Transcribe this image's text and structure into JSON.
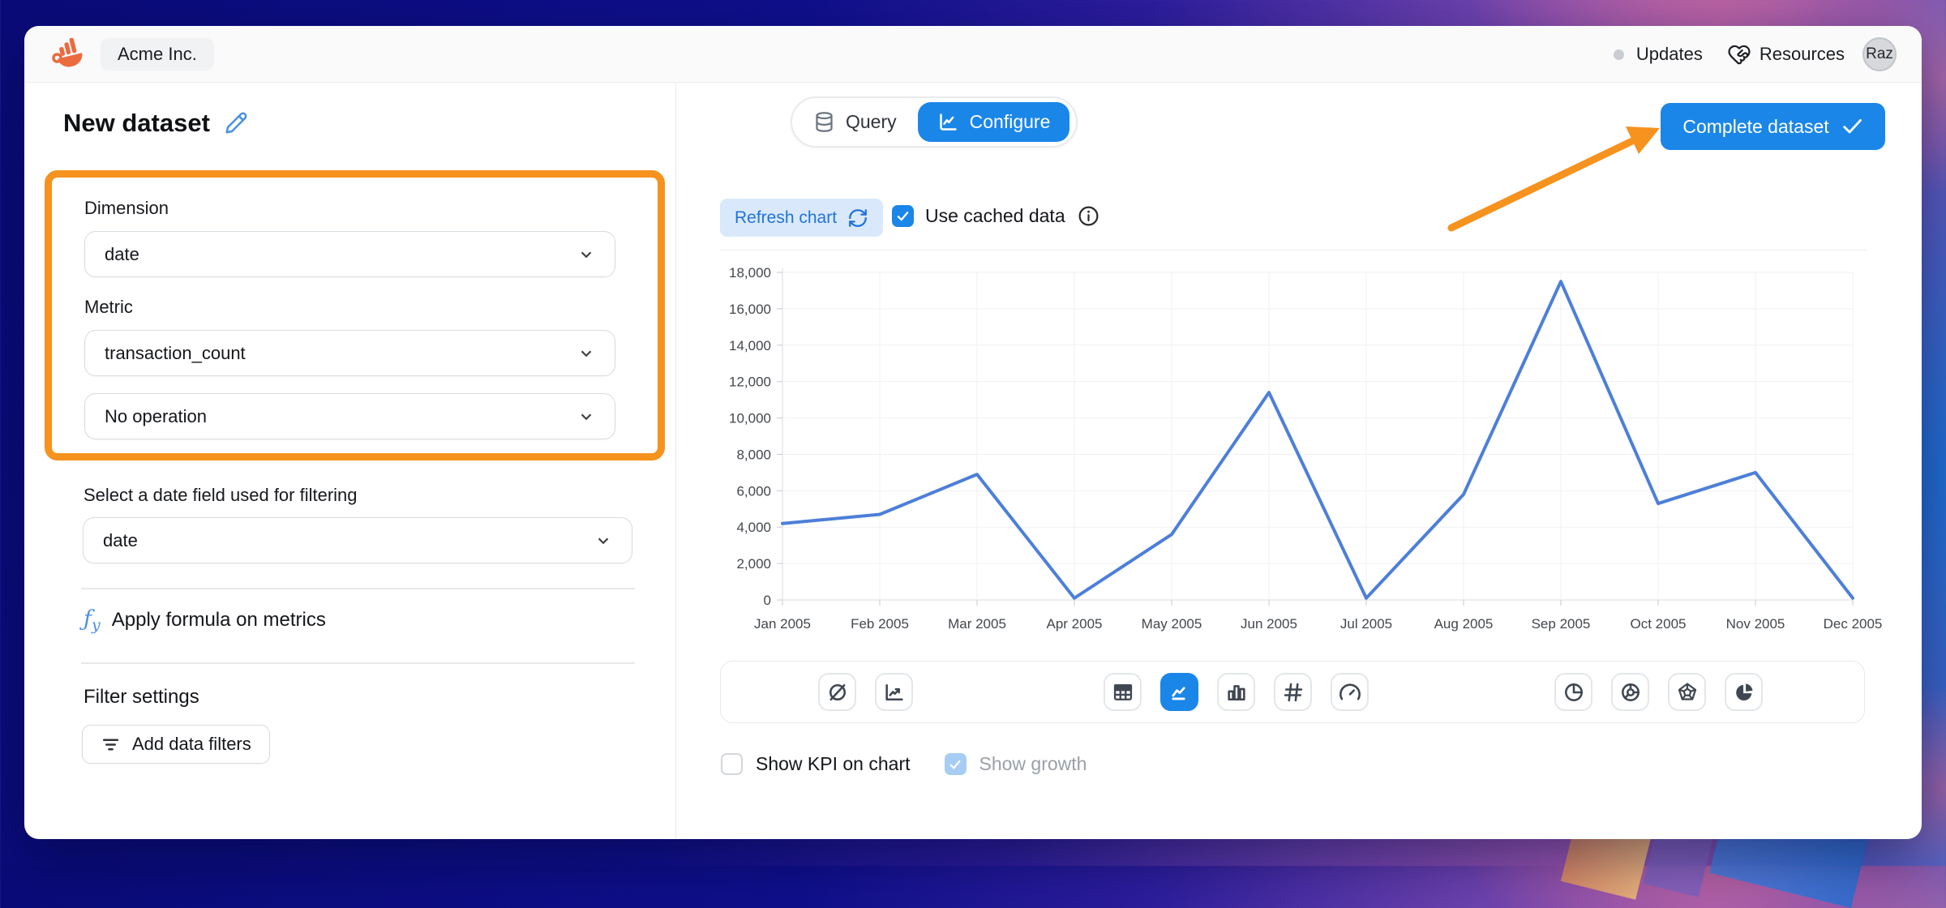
{
  "header": {
    "company": "Acme Inc.",
    "updates": "Updates",
    "resources": "Resources",
    "avatar": "Raz"
  },
  "page": {
    "title": "New dataset"
  },
  "view_toggle": {
    "query": "Query",
    "configure": "Configure",
    "active": "Configure"
  },
  "complete_button": "Complete dataset",
  "panel": {
    "dimension_label": "Dimension",
    "dimension_value": "date",
    "metric_label": "Metric",
    "metric_value": "transaction_count",
    "operation_value": "No operation",
    "date_field_label": "Select a date field used for filtering",
    "date_field_value": "date",
    "formula_icon": "ƒ",
    "formula_icon_sub": "y",
    "formula_label": "Apply formula on metrics",
    "filter_settings_label": "Filter settings",
    "add_filters_label": "Add data filters"
  },
  "chart_controls": {
    "refresh_label": "Refresh chart",
    "cached_label": "Use cached data",
    "cached_checked": true
  },
  "chart_footer": {
    "show_kpi_label": "Show KPI on chart",
    "show_kpi_checked": false,
    "show_growth_label": "Show growth",
    "show_growth_checked": true,
    "show_growth_disabled": true
  },
  "chart_type_icons": [
    "no-chart",
    "trend-line",
    "table",
    "line-chart",
    "bar-chart",
    "number",
    "gauge",
    "pie",
    "donut",
    "radar",
    "pie-filled"
  ],
  "active_chart_type": "line-chart",
  "colors": {
    "accent_blue": "#1a86e8",
    "orange_annotation": "#f6921e",
    "line": "#4d7fd9",
    "refresh_bg": "#d9e9fb",
    "refresh_text": "#2273d8"
  },
  "chart_data": {
    "type": "line",
    "title": "",
    "xlabel": "",
    "ylabel": "",
    "categories": [
      "Jan 2005",
      "Feb 2005",
      "Mar 2005",
      "Apr 2005",
      "May 2005",
      "Jun 2005",
      "Jul 2005",
      "Aug 2005",
      "Sep 2005",
      "Oct 2005",
      "Nov 2005",
      "Dec 2005"
    ],
    "values": [
      4200,
      4700,
      6900,
      100,
      3600,
      11400,
      100,
      5800,
      17500,
      5300,
      7000,
      100
    ],
    "ylim": [
      0,
      18000
    ],
    "ytick_step": 2000,
    "grid": true,
    "legend": false,
    "line_color": "#4d7fd9"
  }
}
